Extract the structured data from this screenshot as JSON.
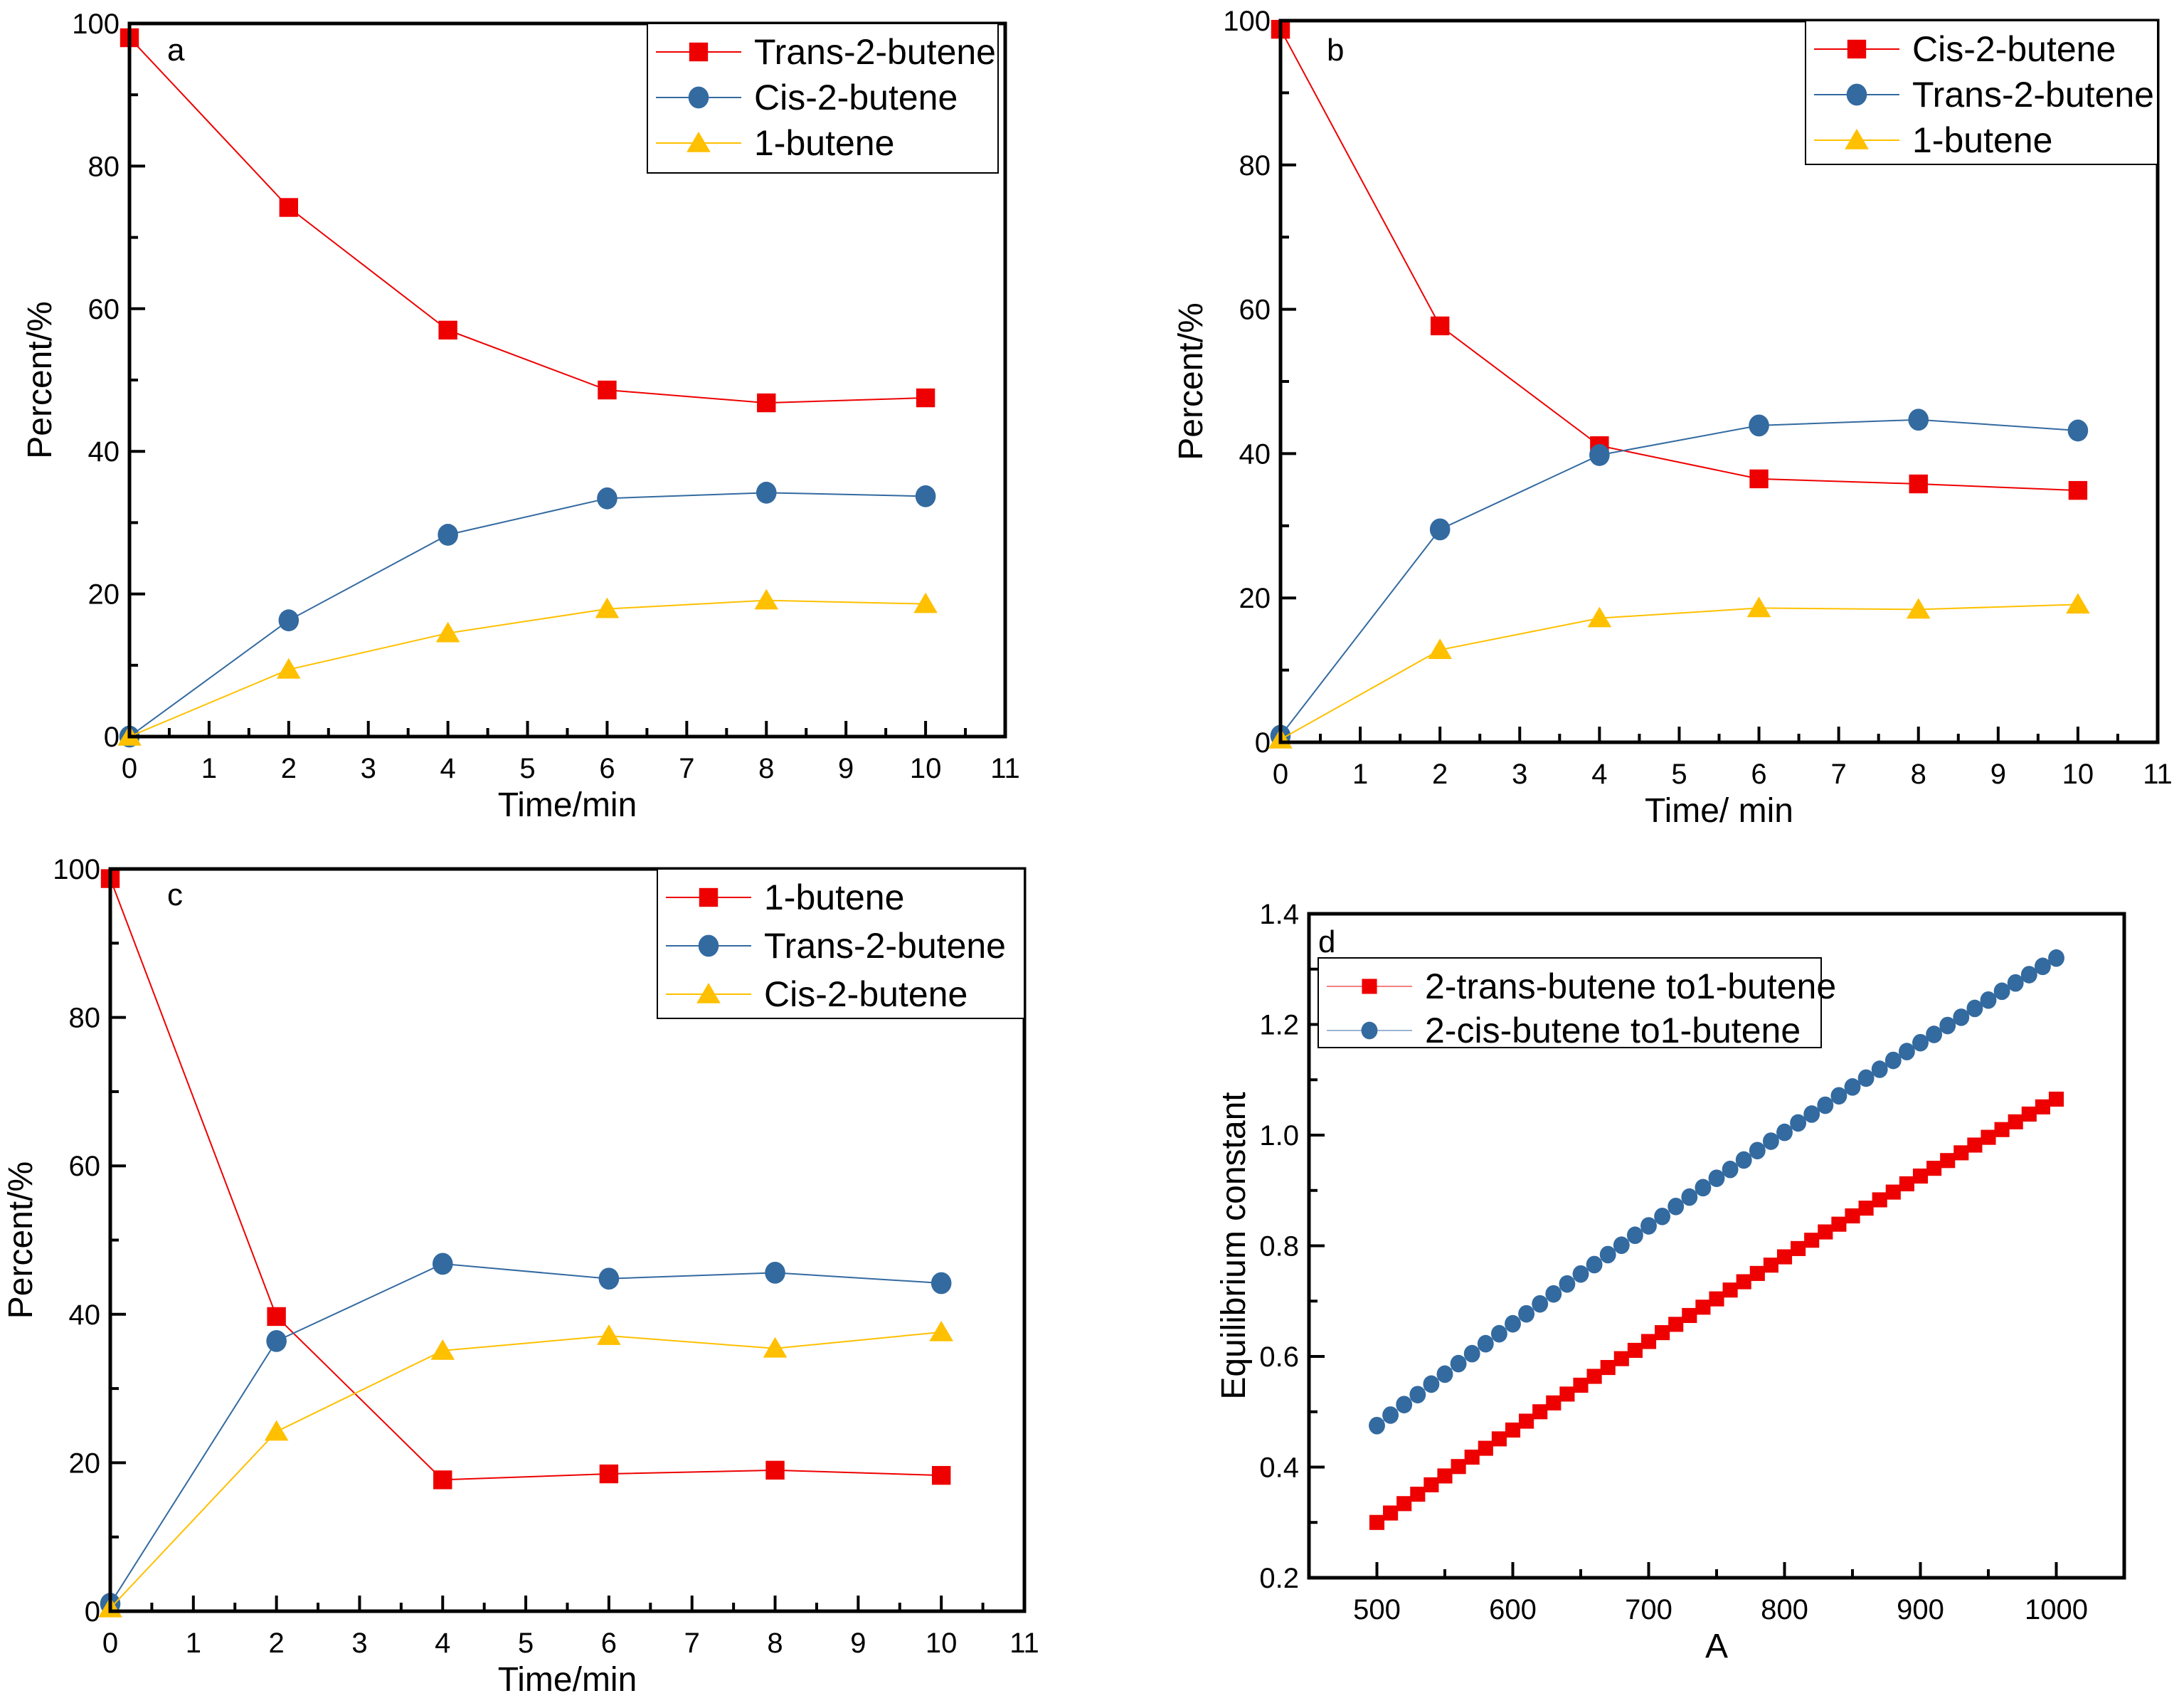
{
  "colors": {
    "red": "#ee0000",
    "blue": "#336aa0",
    "yellow": "#ffc000"
  },
  "chart_data": [
    {
      "type": "line",
      "panel_label": "a",
      "xlabel": "Time/min",
      "ylabel": "Percent/%",
      "xlim": [
        0,
        11
      ],
      "ylim": [
        0,
        100
      ],
      "xticks": [
        0,
        1,
        2,
        3,
        4,
        5,
        6,
        7,
        8,
        9,
        10,
        11
      ],
      "yticks": [
        0,
        20,
        40,
        60,
        80,
        100
      ],
      "x": [
        0,
        2,
        4,
        6,
        8,
        10
      ],
      "legend": "top-right",
      "series": [
        {
          "name": "Trans-2-butene",
          "marker": "square",
          "color": "red",
          "values": [
            98.0,
            74.2,
            57.0,
            48.6,
            46.8,
            47.5
          ]
        },
        {
          "name": "Cis-2-butene",
          "marker": "circle",
          "color": "blue",
          "values": [
            0.0,
            16.3,
            28.3,
            33.4,
            34.2,
            33.7
          ]
        },
        {
          "name": "1-butene",
          "marker": "triangle",
          "color": "yellow",
          "values": [
            0.0,
            9.4,
            14.5,
            17.9,
            19.1,
            18.6
          ]
        }
      ]
    },
    {
      "type": "line",
      "panel_label": "b",
      "xlabel": "Time/ min",
      "ylabel": "Percent/%",
      "xlim": [
        0,
        11
      ],
      "ylim": [
        0,
        100
      ],
      "xticks": [
        0,
        1,
        2,
        3,
        4,
        5,
        6,
        7,
        8,
        9,
        10,
        11
      ],
      "yticks": [
        0,
        20,
        40,
        60,
        80,
        100
      ],
      "x": [
        0,
        2,
        4,
        6,
        8,
        10
      ],
      "legend": "top-right",
      "series": [
        {
          "name": "Cis-2-butene",
          "marker": "square",
          "color": "red",
          "values": [
            98.8,
            57.7,
            41.1,
            36.5,
            35.8,
            34.9
          ]
        },
        {
          "name": "Trans-2-butene",
          "marker": "circle",
          "color": "blue",
          "values": [
            0.9,
            29.5,
            39.8,
            43.9,
            44.7,
            43.2
          ]
        },
        {
          "name": "1-butene",
          "marker": "triangle",
          "color": "yellow",
          "values": [
            0.4,
            12.8,
            17.2,
            18.6,
            18.4,
            19.1
          ]
        }
      ]
    },
    {
      "type": "line",
      "panel_label": "c",
      "xlabel": "Time/min",
      "ylabel": "Percent/%",
      "xlim": [
        0,
        11
      ],
      "ylim": [
        0,
        100
      ],
      "xticks": [
        0,
        1,
        2,
        3,
        4,
        5,
        6,
        7,
        8,
        9,
        10,
        11
      ],
      "yticks": [
        0,
        20,
        40,
        60,
        80,
        100
      ],
      "x": [
        0,
        2,
        4,
        6,
        8,
        10
      ],
      "legend": "top-right",
      "series": [
        {
          "name": "1-butene",
          "marker": "square",
          "color": "red",
          "values": [
            98.7,
            39.7,
            17.7,
            18.5,
            19.0,
            18.3
          ]
        },
        {
          "name": "Trans-2-butene",
          "marker": "circle",
          "color": "blue",
          "values": [
            1.0,
            36.4,
            46.8,
            44.8,
            45.6,
            44.2
          ]
        },
        {
          "name": "Cis-2-butene",
          "marker": "triangle",
          "color": "yellow",
          "values": [
            0.4,
            24.2,
            35.1,
            37.1,
            35.4,
            37.6
          ]
        }
      ]
    },
    {
      "type": "scatter",
      "panel_label": "d",
      "xlabel": "A",
      "ylabel": "Equilibrium constant",
      "xlim": [
        450,
        1050
      ],
      "ylim": [
        0.2,
        1.4
      ],
      "xticks": [
        500,
        600,
        700,
        800,
        900,
        1000
      ],
      "yticks": [
        0.2,
        0.4,
        0.6,
        0.8,
        1.0,
        1.2,
        1.4
      ],
      "ytick_labels": [
        "0.2",
        "0.4",
        "0.6",
        "0.8",
        "1.0",
        "1.2",
        "1.4"
      ],
      "x": [
        500,
        510,
        520,
        530,
        540,
        550,
        560,
        570,
        580,
        590,
        600,
        610,
        620,
        630,
        640,
        650,
        660,
        670,
        680,
        690,
        700,
        710,
        720,
        730,
        740,
        750,
        760,
        770,
        780,
        790,
        800,
        810,
        820,
        830,
        840,
        850,
        860,
        870,
        880,
        890,
        900,
        910,
        920,
        930,
        940,
        950,
        960,
        970,
        980,
        990,
        1000
      ],
      "legend": "top-left",
      "series": [
        {
          "name": "2-trans-butene to1-butene",
          "marker": "square",
          "color": "red",
          "values": [
            0.3,
            0.317,
            0.334,
            0.351,
            0.368,
            0.384,
            0.401,
            0.418,
            0.434,
            0.451,
            0.467,
            0.483,
            0.5,
            0.516,
            0.532,
            0.548,
            0.564,
            0.58,
            0.596,
            0.611,
            0.627,
            0.643,
            0.658,
            0.674,
            0.689,
            0.704,
            0.72,
            0.735,
            0.75,
            0.765,
            0.78,
            0.795,
            0.81,
            0.825,
            0.839,
            0.854,
            0.868,
            0.883,
            0.897,
            0.912,
            0.926,
            0.94,
            0.954,
            0.968,
            0.982,
            0.996,
            1.01,
            1.024,
            1.038,
            1.051,
            1.065
          ]
        },
        {
          "name": "2-cis-butene to1-butene",
          "marker": "circle",
          "color": "blue",
          "values": [
            0.475,
            0.494,
            0.513,
            0.531,
            0.55,
            0.568,
            0.587,
            0.605,
            0.623,
            0.641,
            0.659,
            0.677,
            0.695,
            0.713,
            0.731,
            0.749,
            0.766,
            0.784,
            0.801,
            0.819,
            0.836,
            0.853,
            0.871,
            0.888,
            0.905,
            0.922,
            0.938,
            0.955,
            0.972,
            0.989,
            1.005,
            1.022,
            1.038,
            1.054,
            1.071,
            1.087,
            1.103,
            1.119,
            1.135,
            1.151,
            1.167,
            1.182,
            1.198,
            1.213,
            1.229,
            1.244,
            1.26,
            1.275,
            1.29,
            1.305,
            1.32
          ]
        }
      ]
    }
  ]
}
